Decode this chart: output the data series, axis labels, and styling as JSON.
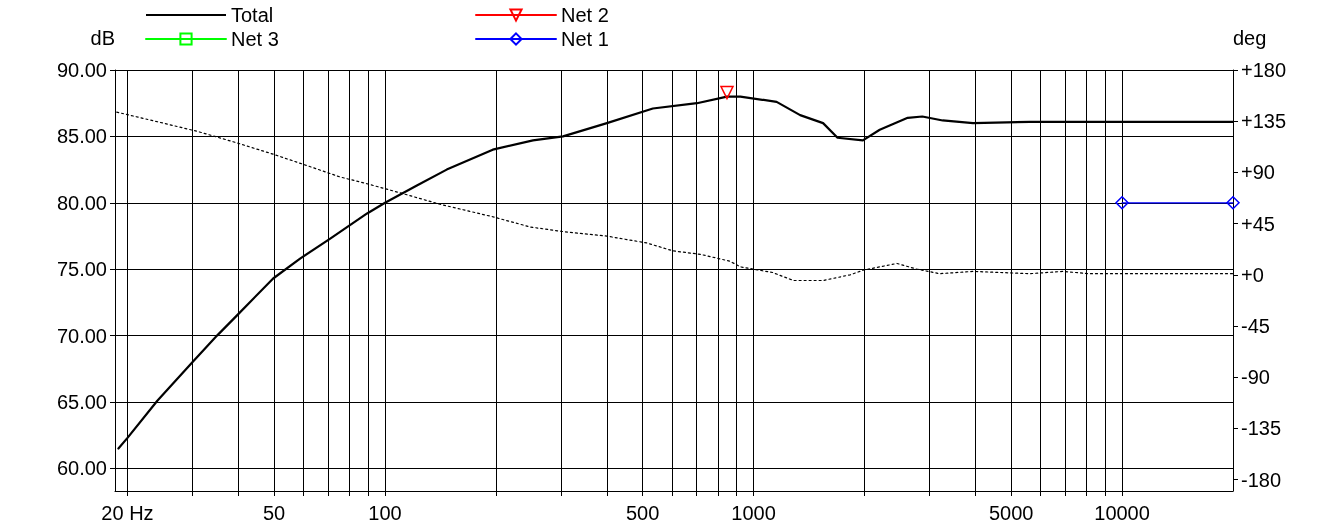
{
  "chart_data": {
    "type": "line",
    "ylabel": "dB",
    "y2label": "deg",
    "xlim": [
      18.5,
      20000
    ],
    "xticks": [
      {
        "value": 20,
        "label": "20 Hz"
      },
      {
        "value": 30,
        "label": null
      },
      {
        "value": 40,
        "label": null
      },
      50,
      {
        "value": 60,
        "label": null
      },
      {
        "value": 70,
        "label": null
      },
      {
        "value": 80,
        "label": null
      },
      {
        "value": 90,
        "label": null
      },
      100,
      {
        "value": 200,
        "label": null
      },
      {
        "value": 300,
        "label": null
      },
      {
        "value": 400,
        "label": null
      },
      500,
      {
        "value": 600,
        "label": null
      },
      {
        "value": 700,
        "label": null
      },
      {
        "value": 800,
        "label": null
      },
      {
        "value": 900,
        "label": null
      },
      1000,
      {
        "value": 2000,
        "label": null
      },
      {
        "value": 3000,
        "label": null
      },
      {
        "value": 4000,
        "label": null
      },
      5000,
      {
        "value": 6000,
        "label": null
      },
      {
        "value": 7000,
        "label": null
      },
      {
        "value": 8000,
        "label": null
      },
      {
        "value": 9000,
        "label": null
      },
      10000
    ],
    "ylim": [
      58.3,
      90
    ],
    "yticks": [
      {
        "value": 60,
        "label": "60.00"
      },
      {
        "value": 65,
        "label": "65.00"
      },
      {
        "value": 70,
        "label": "70.00"
      },
      {
        "value": 75,
        "label": "75.00"
      },
      {
        "value": 80,
        "label": "80.00"
      },
      {
        "value": 85,
        "label": "85.00"
      },
      {
        "value": 90,
        "label": "90.00"
      }
    ],
    "y2lim": [
      -190,
      180
    ],
    "y2ticks": [
      {
        "value": -180,
        "label": "-180"
      },
      {
        "value": -135,
        "label": "-135"
      },
      {
        "value": -90,
        "label": "-90"
      },
      {
        "value": -45,
        "label": "-45"
      },
      {
        "value": 0,
        "label": "+0"
      },
      {
        "value": 45,
        "label": "+45"
      },
      {
        "value": 90,
        "label": "+90"
      },
      {
        "value": 135,
        "label": "+135"
      },
      {
        "value": 180,
        "label": "+180"
      }
    ],
    "log": "x",
    "grid": true,
    "legend": "top",
    "series": [
      {
        "name": "Total",
        "color": "#000000",
        "marker": "none",
        "line_style": "solid",
        "x": [
          18.9,
          20,
          24.1,
          30,
          35,
          39.9,
          49.7,
          58.8,
          71,
          89.4,
          100,
          122,
          147,
          196,
          252,
          304,
          400,
          533,
          702,
          847,
          921,
          1155,
          1338,
          1544,
          1690,
          1980,
          2200,
          2620,
          2870,
          3260,
          3940,
          5620,
          20000
        ],
        "values": [
          61.5,
          62.3,
          65.1,
          68.0,
          70.0,
          71.6,
          74.3,
          75.8,
          77.3,
          79.2,
          80.0,
          81.3,
          82.5,
          84.0,
          84.7,
          85.0,
          86.0,
          87.1,
          87.5,
          88.0,
          88.0,
          87.6,
          86.6,
          86.0,
          84.9,
          84.7,
          85.5,
          86.4,
          86.5,
          86.2,
          86.0,
          86.1,
          86.1
        ]
      },
      {
        "name": "Net 2",
        "color": "#ff0000",
        "marker": "triangle",
        "line_style": "solid",
        "x": [
          847
        ],
        "values": [
          88.3
        ]
      },
      {
        "name": "Net 3",
        "color": "#00ff00",
        "marker": "square",
        "line_style": "solid"
      },
      {
        "name": "Net 1",
        "color": "#0000ff",
        "marker": "diamond",
        "line_style": "solid",
        "x": [
          10000,
          20000
        ],
        "values": [
          80.0,
          80.0
        ]
      },
      {
        "color": "#000000",
        "axis": "y2",
        "marker": "none",
        "line_style": "dotted",
        "x": [
          18.7,
          24.5,
          31,
          39.6,
          49.7,
          61.4,
          75.5,
          89.4,
          110,
          141,
          196,
          248,
          304,
          400,
          513,
          605,
          717,
          862,
          921,
          1127,
          1283,
          1544,
          1830,
          1980,
          2450,
          2770,
          3200,
          3940,
          5620,
          6900,
          8140,
          12900,
          20000
        ],
        "values": [
          143,
          134,
          126,
          116,
          106,
          96,
          86,
          80,
          72,
          62,
          51,
          42,
          38,
          34,
          28,
          21,
          18,
          12,
          7,
          2,
          -5,
          -5,
          0,
          4,
          10,
          5,
          1,
          3,
          1,
          3,
          1,
          1,
          1
        ]
      }
    ]
  }
}
